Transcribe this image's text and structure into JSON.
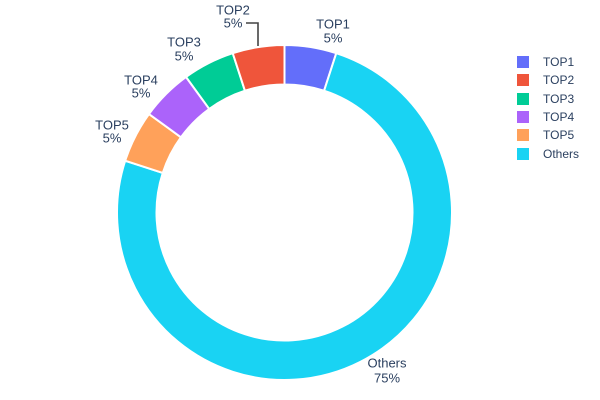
{
  "chart_data": {
    "type": "pie",
    "hole": 0.76,
    "labels": [
      "TOP1",
      "TOP2",
      "TOP3",
      "TOP4",
      "TOP5",
      "Others"
    ],
    "values": [
      5,
      5,
      5,
      5,
      5,
      75
    ],
    "pct_labels": [
      "5%",
      "5%",
      "5%",
      "5%",
      "5%",
      "75%"
    ],
    "colors": [
      "#636EFA",
      "#EF553B",
      "#00CC96",
      "#AB63FA",
      "#FFA15A",
      "#19D3F3"
    ],
    "slice_border_color": "#ffffff",
    "label_text_color": "#2a3f5f",
    "label_line_color": "#444444",
    "background": "#ffffff",
    "legend": {
      "position": "right",
      "entries": [
        "TOP1",
        "TOP2",
        "TOP3",
        "TOP4",
        "TOP5",
        "Others"
      ]
    }
  }
}
